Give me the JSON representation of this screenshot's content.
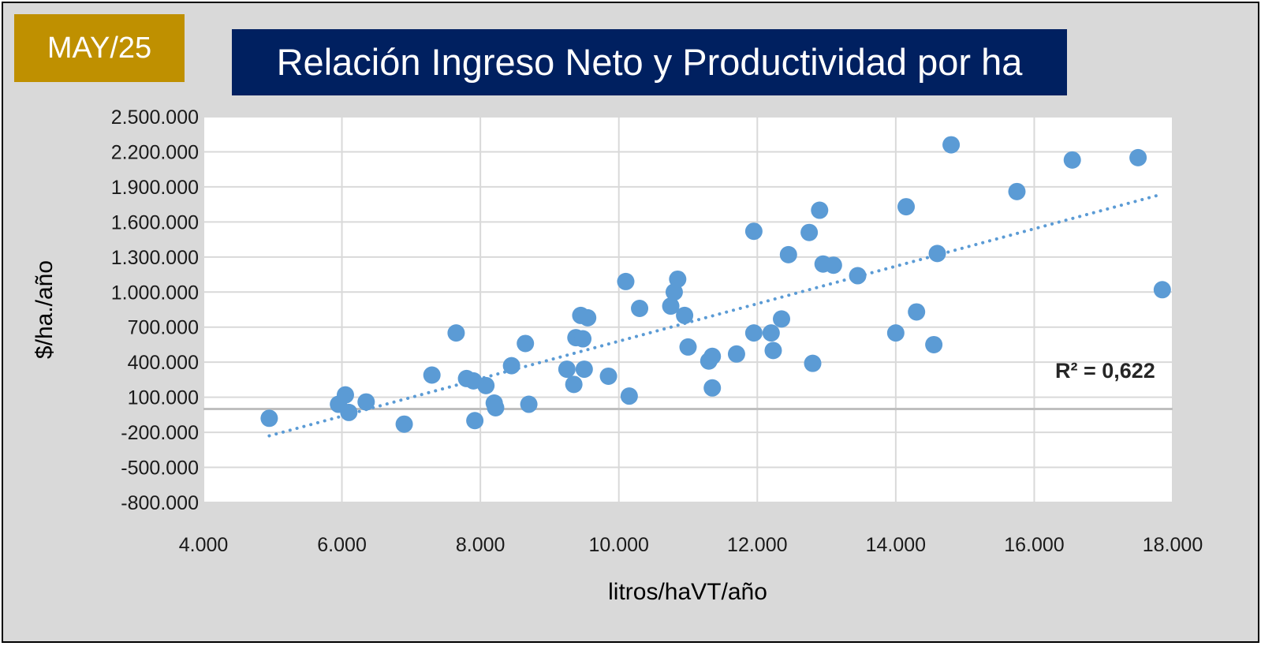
{
  "badge": {
    "label": "MAY/25"
  },
  "chart_data": {
    "type": "scatter",
    "title": "Relación Ingreso Neto y Productividad por ha",
    "xlabel": "litros/haVT/año",
    "ylabel": "$/ha./año",
    "xlim": [
      4000,
      18000
    ],
    "ylim": [
      -800000,
      2500000
    ],
    "xticks": [
      4000,
      6000,
      8000,
      10000,
      12000,
      14000,
      16000,
      18000
    ],
    "xtick_labels": [
      "4.000",
      "6.000",
      "8.000",
      "10.000",
      "12.000",
      "14.000",
      "16.000",
      "18.000"
    ],
    "yticks": [
      2500000,
      2200000,
      1900000,
      1600000,
      1300000,
      1000000,
      700000,
      400000,
      100000,
      -200000,
      -500000,
      -800000
    ],
    "ytick_labels": [
      "2.500.000",
      "2.200.000",
      "1.900.000",
      "1.600.000",
      "1.300.000",
      "1.000.000",
      "700.000",
      "400.000",
      "100.000",
      "-200.000",
      "-500.000",
      "-800.000"
    ],
    "grid": true,
    "points": [
      [
        4950,
        -80000
      ],
      [
        5950,
        40000
      ],
      [
        6050,
        120000
      ],
      [
        6100,
        -30000
      ],
      [
        6350,
        60000
      ],
      [
        6900,
        -130000
      ],
      [
        7300,
        290000
      ],
      [
        7650,
        650000
      ],
      [
        7800,
        260000
      ],
      [
        7900,
        240000
      ],
      [
        7920,
        -100000
      ],
      [
        8080,
        200000
      ],
      [
        8200,
        50000
      ],
      [
        8220,
        10000
      ],
      [
        8450,
        370000
      ],
      [
        8650,
        560000
      ],
      [
        8700,
        40000
      ],
      [
        9250,
        340000
      ],
      [
        9350,
        210000
      ],
      [
        9380,
        610000
      ],
      [
        9450,
        800000
      ],
      [
        9480,
        600000
      ],
      [
        9500,
        340000
      ],
      [
        9550,
        780000
      ],
      [
        9850,
        280000
      ],
      [
        10100,
        1090000
      ],
      [
        10150,
        110000
      ],
      [
        10300,
        860000
      ],
      [
        10750,
        880000
      ],
      [
        10800,
        1000000
      ],
      [
        10850,
        1110000
      ],
      [
        10950,
        800000
      ],
      [
        11000,
        530000
      ],
      [
        11300,
        410000
      ],
      [
        11350,
        450000
      ],
      [
        11350,
        180000
      ],
      [
        11700,
        470000
      ],
      [
        11950,
        1520000
      ],
      [
        11950,
        650000
      ],
      [
        12200,
        650000
      ],
      [
        12230,
        500000
      ],
      [
        12350,
        770000
      ],
      [
        12450,
        1320000
      ],
      [
        12750,
        1510000
      ],
      [
        12800,
        390000
      ],
      [
        12900,
        1700000
      ],
      [
        12950,
        1240000
      ],
      [
        13100,
        1230000
      ],
      [
        13450,
        1140000
      ],
      [
        14000,
        650000
      ],
      [
        14150,
        1730000
      ],
      [
        14300,
        830000
      ],
      [
        14550,
        550000
      ],
      [
        14600,
        1330000
      ],
      [
        14800,
        2260000
      ],
      [
        15750,
        1860000
      ],
      [
        16550,
        2130000
      ],
      [
        17500,
        2150000
      ],
      [
        17850,
        1020000
      ]
    ],
    "trendline": {
      "style": "dotted",
      "x": [
        4950,
        17800
      ],
      "y": [
        -230000,
        1830000
      ]
    },
    "annotation": "R² = 0,622",
    "colors": {
      "points": "#5b9bd5",
      "trendline": "#5b9bd5",
      "background": "#d9d9d9",
      "plot_area": "#ffffff",
      "title_banner": "#002060",
      "badge": "#bf9000"
    }
  }
}
